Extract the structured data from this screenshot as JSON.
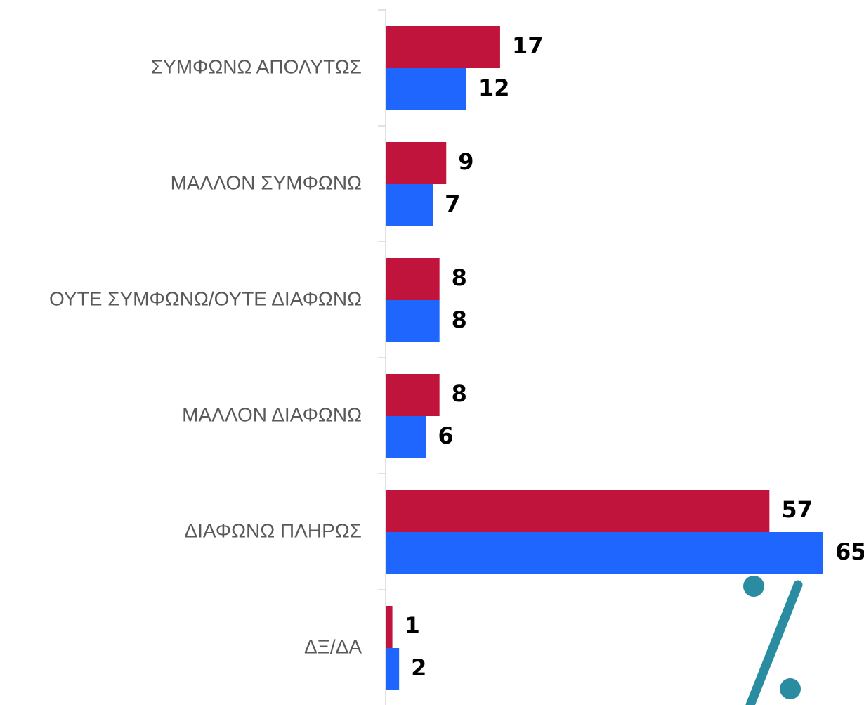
{
  "chart_data": {
    "type": "barh",
    "categories": [
      "ΣΥΜΦΩΝΩ ΑΠΟΛΥΤΩΣ",
      "ΜΑΛΛΟΝ ΣΥΜΦΩΝΩ",
      "ΟΥΤΕ ΣΥΜΦΩΝΩ/ΟΥΤΕ ΔΙΑΦΩΝΩ",
      "ΜΑΛΛΟΝ ΔΙΑΦΩΝΩ",
      "ΔΙΑΦΩΝΩ ΠΛΗΡΩΣ",
      "ΔΞ/ΔΑ"
    ],
    "series": [
      {
        "color": "#c0143c",
        "values": [
          17,
          9,
          8,
          8,
          57,
          1
        ]
      },
      {
        "color": "#1f66ff",
        "values": [
          12,
          7,
          8,
          6,
          65,
          2
        ]
      }
    ],
    "xlim": [
      0,
      65
    ]
  }
}
